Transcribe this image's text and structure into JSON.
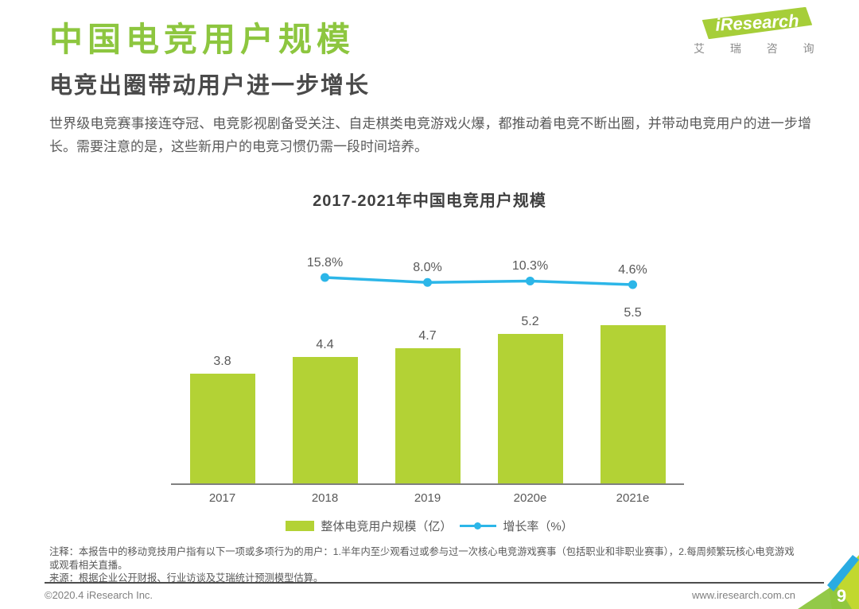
{
  "header": {
    "title": "中国电竞用户规模",
    "subtitle": "电竞出圈带动用户进一步增长"
  },
  "logo": {
    "brand": "iResearch",
    "caption": "艾 瑞 咨 询"
  },
  "intro": {
    "text": "世界级电竞赛事接连夺冠、电竞影视剧备受关注、自走棋类电竞游戏火爆，都推动着电竞不断出圈，并带动电竞用户的进一步增长。需要注意的是，这些新用户的电竞习惯仍需一段时间培养。"
  },
  "chart_data": {
    "type": "bar+line",
    "title": "2017-2021年中国电竞用户规模",
    "categories": [
      "2017",
      "2018",
      "2019",
      "2020e",
      "2021e"
    ],
    "series": [
      {
        "name": "整体电竞用户规模（亿）",
        "type": "bar",
        "values": [
          3.8,
          4.4,
          4.7,
          5.2,
          5.5
        ],
        "labels": [
          "3.8",
          "4.4",
          "4.7",
          "5.2",
          "5.5"
        ],
        "color": "#b3d235"
      },
      {
        "name": "增长率（%）",
        "type": "line",
        "values": [
          null,
          15.8,
          8.0,
          10.3,
          4.6
        ],
        "labels": [
          null,
          "15.8%",
          "8.0%",
          "10.3%",
          "4.6%"
        ],
        "color": "#2cb6e8"
      }
    ],
    "ylim": [
      0,
      6
    ],
    "grid": false,
    "legend_position": "bottom"
  },
  "notes": {
    "annotation": "注释：本报告中的移动竞技用户指有以下一项或多项行为的用户：1.半年内至少观看过或参与过一次核心电竞游戏赛事（包括职业和非职业赛事），2.每周频繁玩核心电竞游戏或观看相关直播。",
    "source": "来源：根据企业公开财报、行业访谈及艾瑞统计预测模型估算。"
  },
  "footer": {
    "copyright": "©2020.4 iResearch Inc.",
    "website": "www.iresearch.com.cn",
    "page_number": "9"
  },
  "colors": {
    "accent_green": "#8dc63f",
    "bar_green": "#b3d235",
    "line_blue": "#2cb6e8",
    "logo_green": "#a6ce39",
    "logo_dot_blue": "#2e75b6",
    "corner_lime": "#c1d82f",
    "corner_green": "#8dc63f",
    "corner_blue": "#29abe2"
  }
}
